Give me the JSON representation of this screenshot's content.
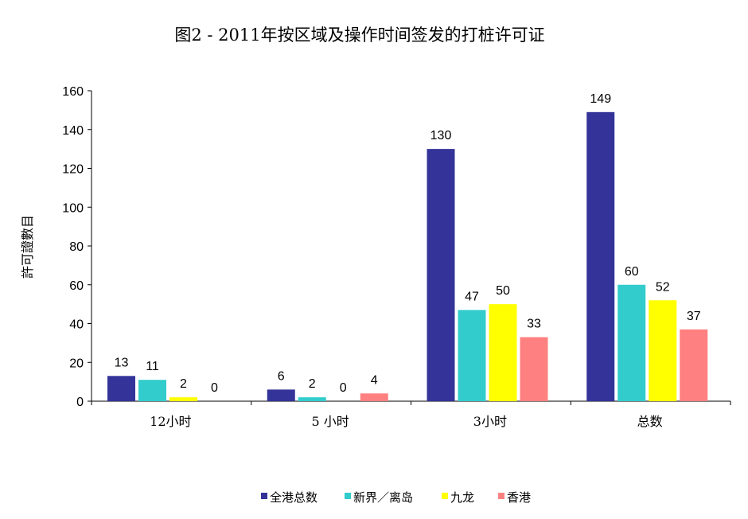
{
  "chart_data": {
    "type": "bar",
    "title": "图2 - 2011年按区域及操作时间签发的打桩许可证",
    "xlabel": "",
    "ylabel": "許可證數目",
    "ylim": [
      0,
      160
    ],
    "yticks": [
      0,
      20,
      40,
      60,
      80,
      100,
      120,
      140,
      160
    ],
    "categories": [
      "12小时",
      "5 小时",
      "3小时",
      "总数"
    ],
    "series": [
      {
        "name": "全港总数",
        "color": "#333399",
        "values": [
          13,
          6,
          130,
          149
        ]
      },
      {
        "name": "新界／离岛",
        "color": "#33CCCC",
        "values": [
          11,
          2,
          47,
          60
        ]
      },
      {
        "name": "九龙",
        "color": "#FFFF00",
        "values": [
          2,
          0,
          50,
          52
        ]
      },
      {
        "name": "香港",
        "color": "#FF8080",
        "values": [
          0,
          4,
          33,
          37
        ]
      }
    ],
    "data_labels": true,
    "grid": false,
    "legend_position": "bottom"
  }
}
